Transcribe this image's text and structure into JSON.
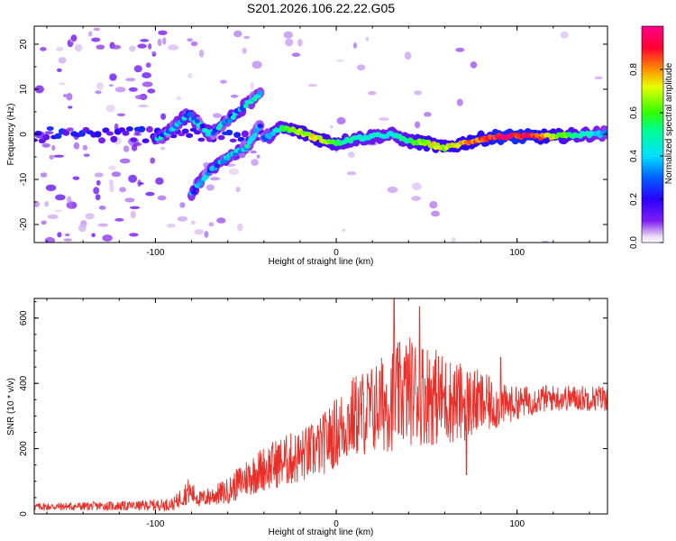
{
  "title": "S201.2026.106.22.22.G05",
  "colors": {
    "snr_line": "#e8302a",
    "frame": "#000000"
  },
  "chart_data": [
    {
      "type": "heatmap",
      "name": "spectrogram",
      "xlabel": "Height of straight line (km)",
      "ylabel": "Frequency (Hz)",
      "xlim": [
        -167,
        150
      ],
      "ylim": [
        -24,
        24
      ],
      "x_ticks": [
        -100,
        0,
        100
      ],
      "y_ticks": [
        -20,
        -10,
        0,
        10,
        20
      ],
      "colorbar": {
        "label": "Normalized spectral amplitude",
        "range": [
          0.0,
          1.0
        ],
        "ticks": [
          "0.0",
          "0.2",
          "0.4",
          "0.6",
          "0.8"
        ]
      },
      "features": [
        {
          "desc": "main ridge (height km, freq Hz)",
          "x": [
            -40,
            -30,
            -20,
            -10,
            0,
            10,
            20,
            30,
            40,
            50,
            60,
            70,
            80,
            90,
            100,
            110,
            120,
            130,
            140,
            150
          ],
          "y": [
            -1,
            1.5,
            0.5,
            -1,
            -2,
            -1,
            -0.5,
            0,
            -1.5,
            -2,
            -3,
            -2,
            -1,
            -0.5,
            -0.5,
            -0.5,
            -0.5,
            -0.2,
            0,
            0.2
          ],
          "amplitude": [
            0.3,
            0.55,
            0.7,
            0.75,
            0.6,
            0.5,
            0.5,
            0.45,
            0.55,
            0.75,
            0.7,
            0.8,
            0.85,
            0.95,
            0.98,
            0.9,
            0.75,
            0.6,
            0.45,
            0.35
          ]
        },
        {
          "desc": "upper diagonal branch",
          "x": [
            -100,
            -90,
            -82,
            -70,
            -60,
            -50,
            -42
          ],
          "y": [
            -1.5,
            1.5,
            4.5,
            0,
            3,
            6.5,
            9
          ]
        },
        {
          "desc": "lower diagonal branch",
          "x": [
            -80,
            -70,
            -60,
            -50,
            -42
          ],
          "y": [
            -13,
            -8,
            -5,
            -3,
            2
          ]
        }
      ]
    },
    {
      "type": "line",
      "name": "snr",
      "xlabel": "Height of straight line (km)",
      "ylabel": "SNR (10 * v/v)",
      "xlim": [
        -167,
        150
      ],
      "ylim": [
        0,
        660
      ],
      "x_ticks": [
        -100,
        0,
        100
      ],
      "y_ticks": [
        0,
        200,
        400,
        600
      ],
      "envelope": {
        "x": [
          -167,
          -110,
          -90,
          -82,
          -75,
          -60,
          -50,
          -40,
          -30,
          -20,
          -10,
          0,
          10,
          20,
          30,
          40,
          50,
          60,
          70,
          80,
          90,
          100,
          110,
          120,
          130,
          140,
          150
        ],
        "y": [
          22,
          25,
          30,
          70,
          45,
          70,
          110,
          140,
          160,
          175,
          200,
          250,
          300,
          320,
          350,
          380,
          370,
          350,
          340,
          340,
          330,
          340,
          350,
          355,
          355,
          355,
          355
        ],
        "amp": [
          12,
          15,
          20,
          40,
          25,
          40,
          60,
          70,
          80,
          85,
          90,
          110,
          130,
          140,
          160,
          170,
          160,
          140,
          120,
          100,
          70,
          50,
          45,
          40,
          40,
          40,
          40
        ]
      },
      "peaks": [
        {
          "x": 32,
          "y": 660
        },
        {
          "x": 46,
          "y": 635
        },
        {
          "x": 72,
          "y": 120
        },
        {
          "x": 91,
          "y": 480
        }
      ]
    }
  ]
}
